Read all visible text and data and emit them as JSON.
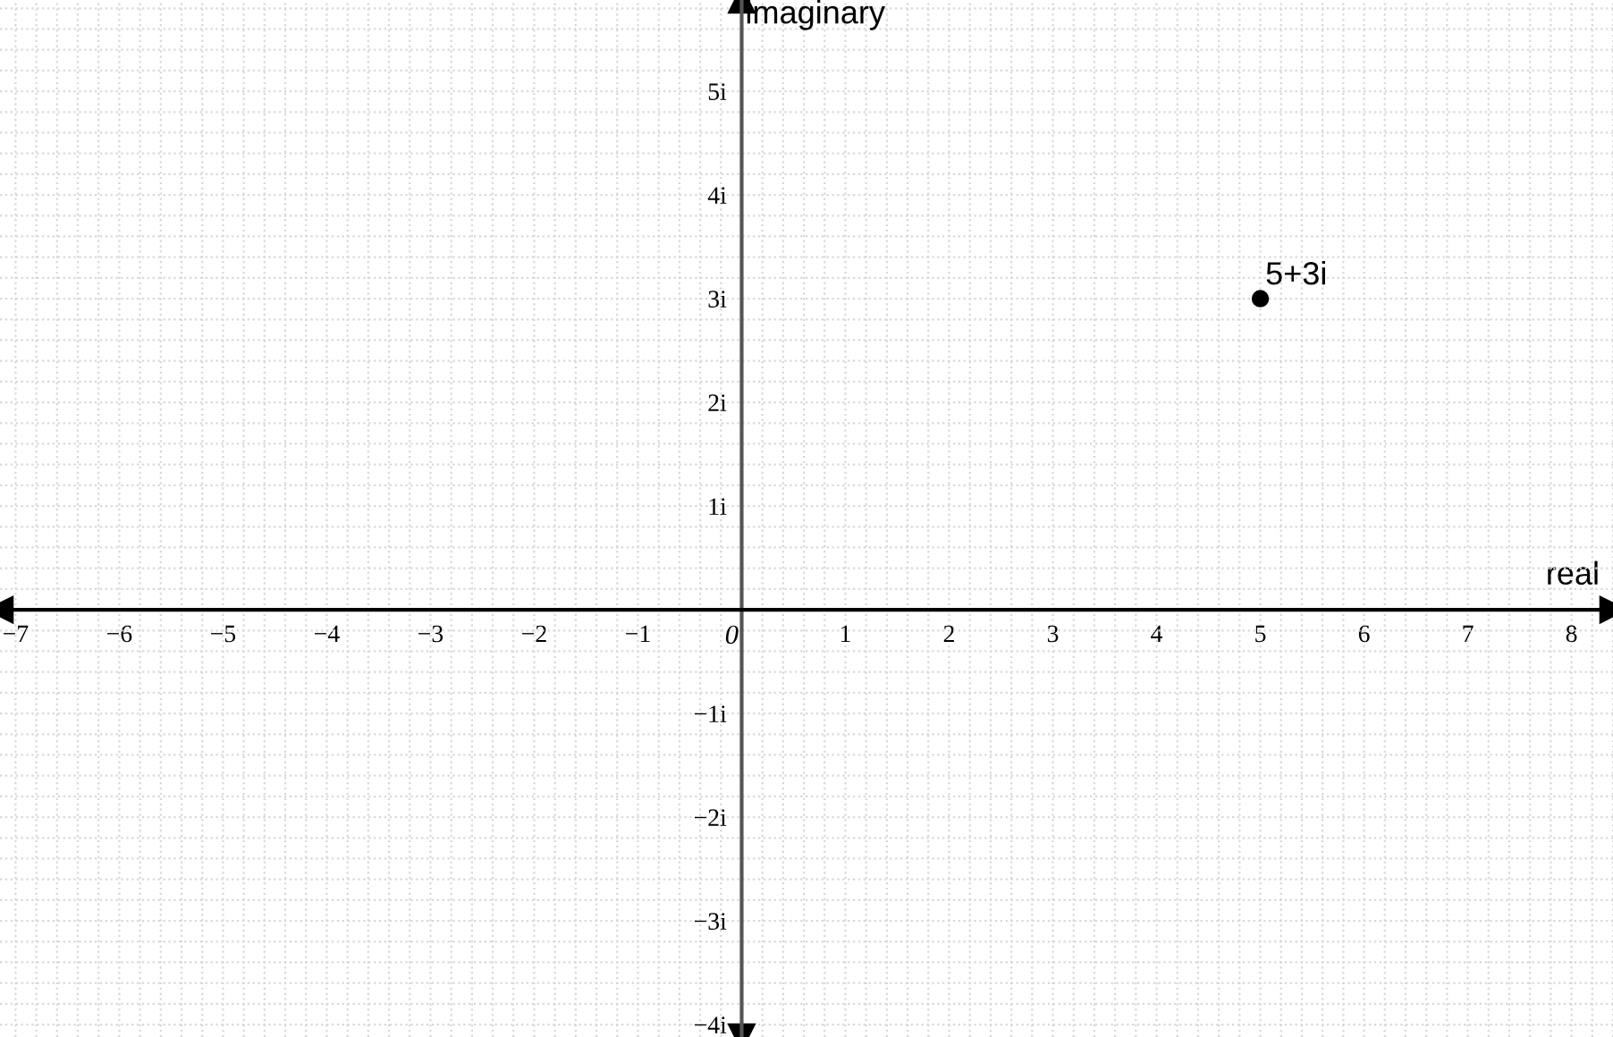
{
  "chart_data": {
    "type": "scatter",
    "xlabel": "real",
    "ylabel": "imaginary",
    "series": [
      {
        "x": [
          5
        ],
        "values": [
          3
        ],
        "color": "#000000"
      }
    ],
    "annotations": [
      {
        "text": "5+3i",
        "x": 5,
        "y": 3
      }
    ],
    "xlim": [
      -7.15,
      8.4
    ],
    "ylim": [
      -4.12,
      5.88
    ],
    "xticks": [
      {
        "value": -7,
        "label": "−7"
      },
      {
        "value": -6,
        "label": "−6"
      },
      {
        "value": -5,
        "label": "−5"
      },
      {
        "value": -4,
        "label": "−4"
      },
      {
        "value": -3,
        "label": "−3"
      },
      {
        "value": -2,
        "label": "−2"
      },
      {
        "value": -1,
        "label": "−1"
      },
      0,
      1,
      2,
      3,
      4,
      5,
      6,
      7,
      8
    ],
    "yticks": [
      {
        "value": -4,
        "label": "−4i"
      },
      {
        "value": -3,
        "label": "−3i"
      },
      {
        "value": -2,
        "label": "−2i"
      },
      {
        "value": -1,
        "label": "−1i"
      },
      {
        "value": 1,
        "label": "1i"
      },
      {
        "value": 2,
        "label": "2i"
      },
      {
        "value": 3,
        "label": "3i"
      },
      {
        "value": 4,
        "label": "4i"
      },
      {
        "value": 5,
        "label": "5i"
      }
    ],
    "grid": true,
    "marker": "circle"
  }
}
